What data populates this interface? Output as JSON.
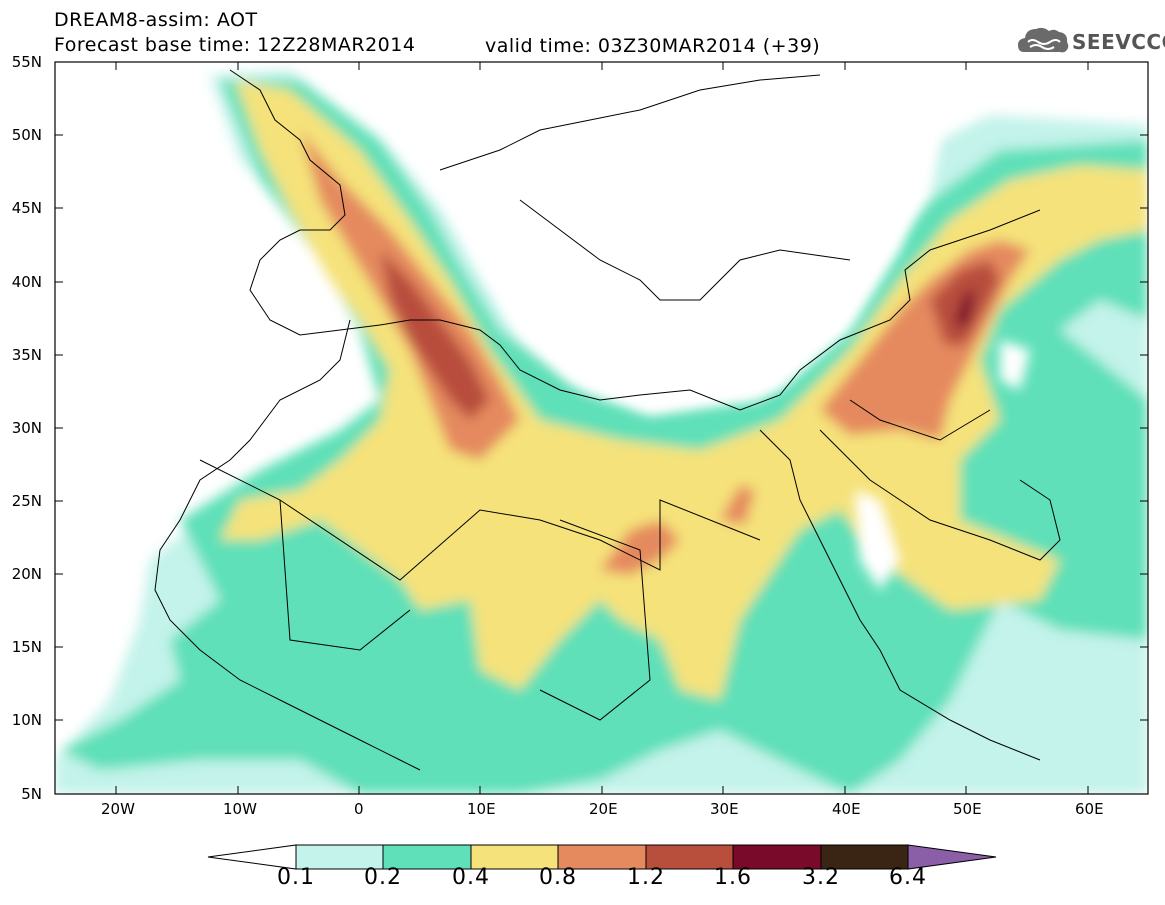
{
  "title": {
    "line1": "DREAM8-assim: AOT",
    "line2": "Forecast base time: 12Z28MAR2014",
    "line3": "valid time: 03Z30MAR2014 (+39)"
  },
  "logo": {
    "text": "SEEVCCC",
    "icon": "cloud-icon"
  },
  "axes": {
    "lat_labels": [
      "55N",
      "50N",
      "45N",
      "40N",
      "35N",
      "30N",
      "25N",
      "20N",
      "15N",
      "10N",
      "5N"
    ],
    "lon_labels": [
      "20W",
      "10W",
      "0",
      "10E",
      "20E",
      "30E",
      "40E",
      "50E",
      "60E"
    ]
  },
  "colorbar": {
    "labels": [
      "0.1",
      "0.2",
      "0.4",
      "0.8",
      "1.2",
      "1.6",
      "3.2",
      "6.4"
    ],
    "colors": [
      "#ffffff",
      "#c3f3ea",
      "#5fe0b8",
      "#f5e27a",
      "#e58a5e",
      "#b84e3c",
      "#7a0a2a",
      "#3a2414",
      "#8a5fa8"
    ]
  }
}
